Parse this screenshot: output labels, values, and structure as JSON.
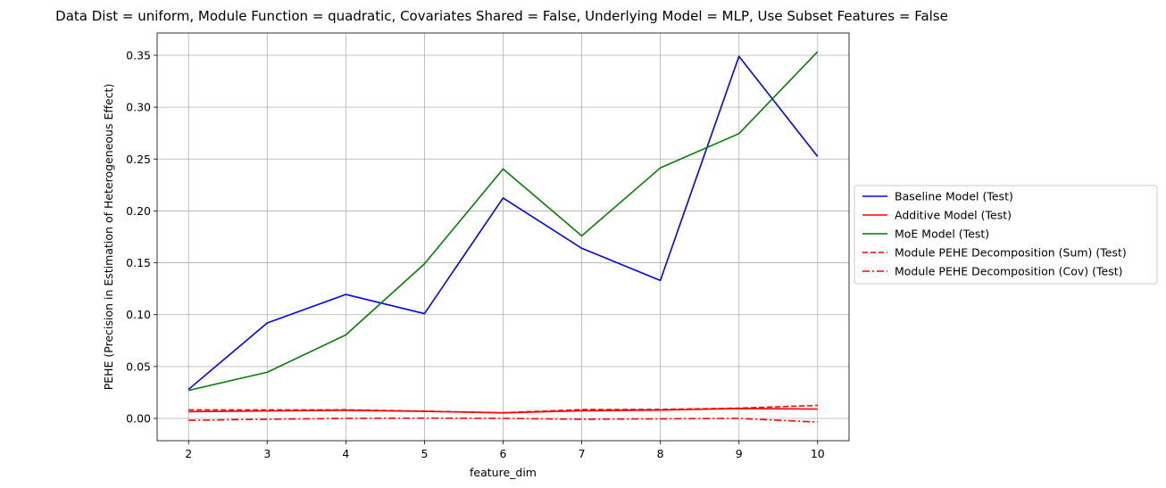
{
  "chart_data": {
    "type": "line",
    "title": "Data Dist = uniform, Module Function = quadratic, Covariates Shared = False, Underlying Model = MLP, Use Subset Features = False",
    "xlabel": "feature_dim",
    "ylabel": "PEHE (Precision in Estimation of Heterogeneous Effect)",
    "x": [
      2,
      3,
      4,
      5,
      6,
      7,
      8,
      9,
      10
    ],
    "xlim": [
      1.6,
      10.4
    ],
    "ylim": [
      -0.0215,
      0.3715
    ],
    "xticks": [
      "2",
      "3",
      "4",
      "5",
      "6",
      "7",
      "8",
      "9",
      "10"
    ],
    "yticks": [
      "0.00",
      "0.05",
      "0.10",
      "0.15",
      "0.20",
      "0.25",
      "0.30",
      "0.35"
    ],
    "ytick_values": [
      0.0,
      0.05,
      0.1,
      0.15,
      0.2,
      0.25,
      0.3,
      0.35
    ],
    "grid": true,
    "legend_position": "center-right-outside",
    "series": [
      {
        "name": "Baseline Model (Test)",
        "color": "#0000ff",
        "dash": "solid",
        "values": [
          0.028,
          0.092,
          0.1195,
          0.101,
          0.2125,
          0.164,
          0.133,
          0.349,
          0.2525
        ]
      },
      {
        "name": "Additive Model (Test)",
        "color": "#ff0000",
        "dash": "solid",
        "values": [
          0.0065,
          0.0072,
          0.0078,
          0.0068,
          0.0053,
          0.0074,
          0.008,
          0.0095,
          0.009
        ]
      },
      {
        "name": "MoE Model (Test)",
        "color": "#008000",
        "dash": "solid",
        "values": [
          0.027,
          0.0445,
          0.0805,
          0.149,
          0.2405,
          0.176,
          0.2415,
          0.2745,
          0.3535
        ]
      },
      {
        "name": "Module PEHE Decomposition (Sum) (Test)",
        "color": "#ff0000",
        "dash": "dashed",
        "values": [
          0.0082,
          0.0082,
          0.0083,
          0.007,
          0.0055,
          0.0085,
          0.0087,
          0.0099,
          0.0125
        ]
      },
      {
        "name": "Module PEHE Decomposition (Cov) (Test)",
        "color": "#ff0000",
        "dash": "dashdot",
        "values": [
          -0.0018,
          -0.0008,
          0.0,
          0.0003,
          0.0,
          -0.0008,
          -0.0004,
          0.0,
          -0.0035
        ]
      }
    ]
  }
}
